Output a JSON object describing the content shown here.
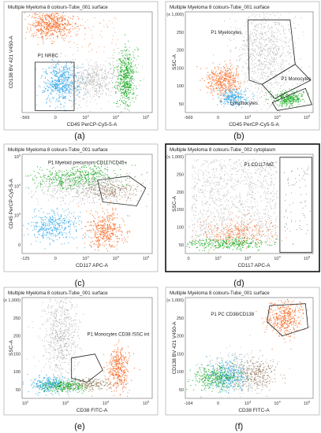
{
  "panel_letters": [
    "(a)",
    "(b)",
    "(c)",
    "(d)",
    "(e)",
    "(f)"
  ],
  "colors": {
    "gray": "#a9a9a9",
    "orange": "#f4651e",
    "blue": "#2fa7e8",
    "green": "#15a91f",
    "brown": "#8a6a4a",
    "black": "#333333"
  },
  "chart_data": [
    {
      "type": "scatter",
      "title": "Multiple Myeloma 8 colours-Tube_001 surface",
      "xlabel": "CD45 PerCP-Cy5-5-A",
      "ylabel": "CD138 BV 421 V450-A",
      "x_ticks": [
        "-569",
        "0",
        "10^3",
        "10^4",
        "10^5"
      ],
      "y_ticks": [],
      "gate_labels": [
        "P1 NRBC"
      ],
      "populations": [
        "orange",
        "gray",
        "blue",
        "green"
      ]
    },
    {
      "type": "scatter",
      "title": "Multiple Myeloma 8 colours-Tube_001 surface",
      "xlabel": "CD45 PerCP-Cy5-5-A",
      "ylabel": "SSC-A",
      "x_ticks": [
        "-569",
        "0",
        "10^3",
        "10^4",
        "10^5"
      ],
      "y_ticks": [
        "(x 1,000)",
        "250",
        "200",
        "150",
        "100",
        "50"
      ],
      "gate_labels": [
        "P1 Myelocytes",
        "P1 Monocytes",
        "Lymphocytes"
      ],
      "populations": [
        "gray",
        "orange",
        "blue",
        "green"
      ]
    },
    {
      "type": "scatter",
      "title": "Multiple Myeloma 8 colours-Tube_001 surface",
      "xlabel": "CD117 APC-A",
      "ylabel": "CD45 PerCP-Cy5-5-A",
      "x_ticks": [
        "-125",
        "0",
        "10^3",
        "10^4",
        "10^5"
      ],
      "y_ticks": [
        "10^5",
        "10^4",
        "10^3",
        "0"
      ],
      "gate_labels": [
        "P1 Myeloid precursors CD117/CD45+"
      ],
      "populations": [
        "green",
        "gray",
        "blue",
        "orange",
        "brown"
      ]
    },
    {
      "type": "scatter",
      "title": "Multiple Myeloma 8 colours-Tube_002 cytoplasm",
      "xlabel": "CD117 APC-A",
      "ylabel": "SSC-A",
      "x_ticks": [
        "0",
        "10^2",
        "10^3",
        "10^4",
        "10^5"
      ],
      "y_ticks": [
        "(x 1,000)",
        "250",
        "200",
        "150",
        "100",
        "50"
      ],
      "gate_labels": [
        "P1 CD117/MZ"
      ],
      "populations": [
        "gray",
        "orange",
        "green",
        "black"
      ]
    },
    {
      "type": "scatter",
      "title": "Multiple Myeloma 8 colours-Tube_001 surface",
      "xlabel": "CD38 FITC-A",
      "ylabel": "SSC-A",
      "x_ticks": [
        "10^2",
        "10^3",
        "10^4",
        "10^5"
      ],
      "y_ticks": [
        "(x 1,000)",
        "250",
        "200",
        "150",
        "100",
        "50"
      ],
      "gate_labels": [
        "P1 Monocytes CD38 /SSC int"
      ],
      "populations": [
        "gray",
        "orange",
        "blue",
        "green",
        "brown"
      ]
    },
    {
      "type": "scatter",
      "title": "Multiple Myeloma 8 colours-Tube_001 surface",
      "xlabel": "CD38 FITC-A",
      "ylabel": "CD138 BV 421 V450-A",
      "x_ticks": [
        "-164",
        "0",
        "10^3",
        "10^4",
        "10^5"
      ],
      "y_ticks": [
        "(x 1,000)",
        "250",
        "200",
        "150",
        "100",
        "50"
      ],
      "gate_labels": [
        "P1 PC CD38/CD138"
      ],
      "populations": [
        "orange",
        "gray",
        "blue",
        "green",
        "brown"
      ]
    }
  ]
}
